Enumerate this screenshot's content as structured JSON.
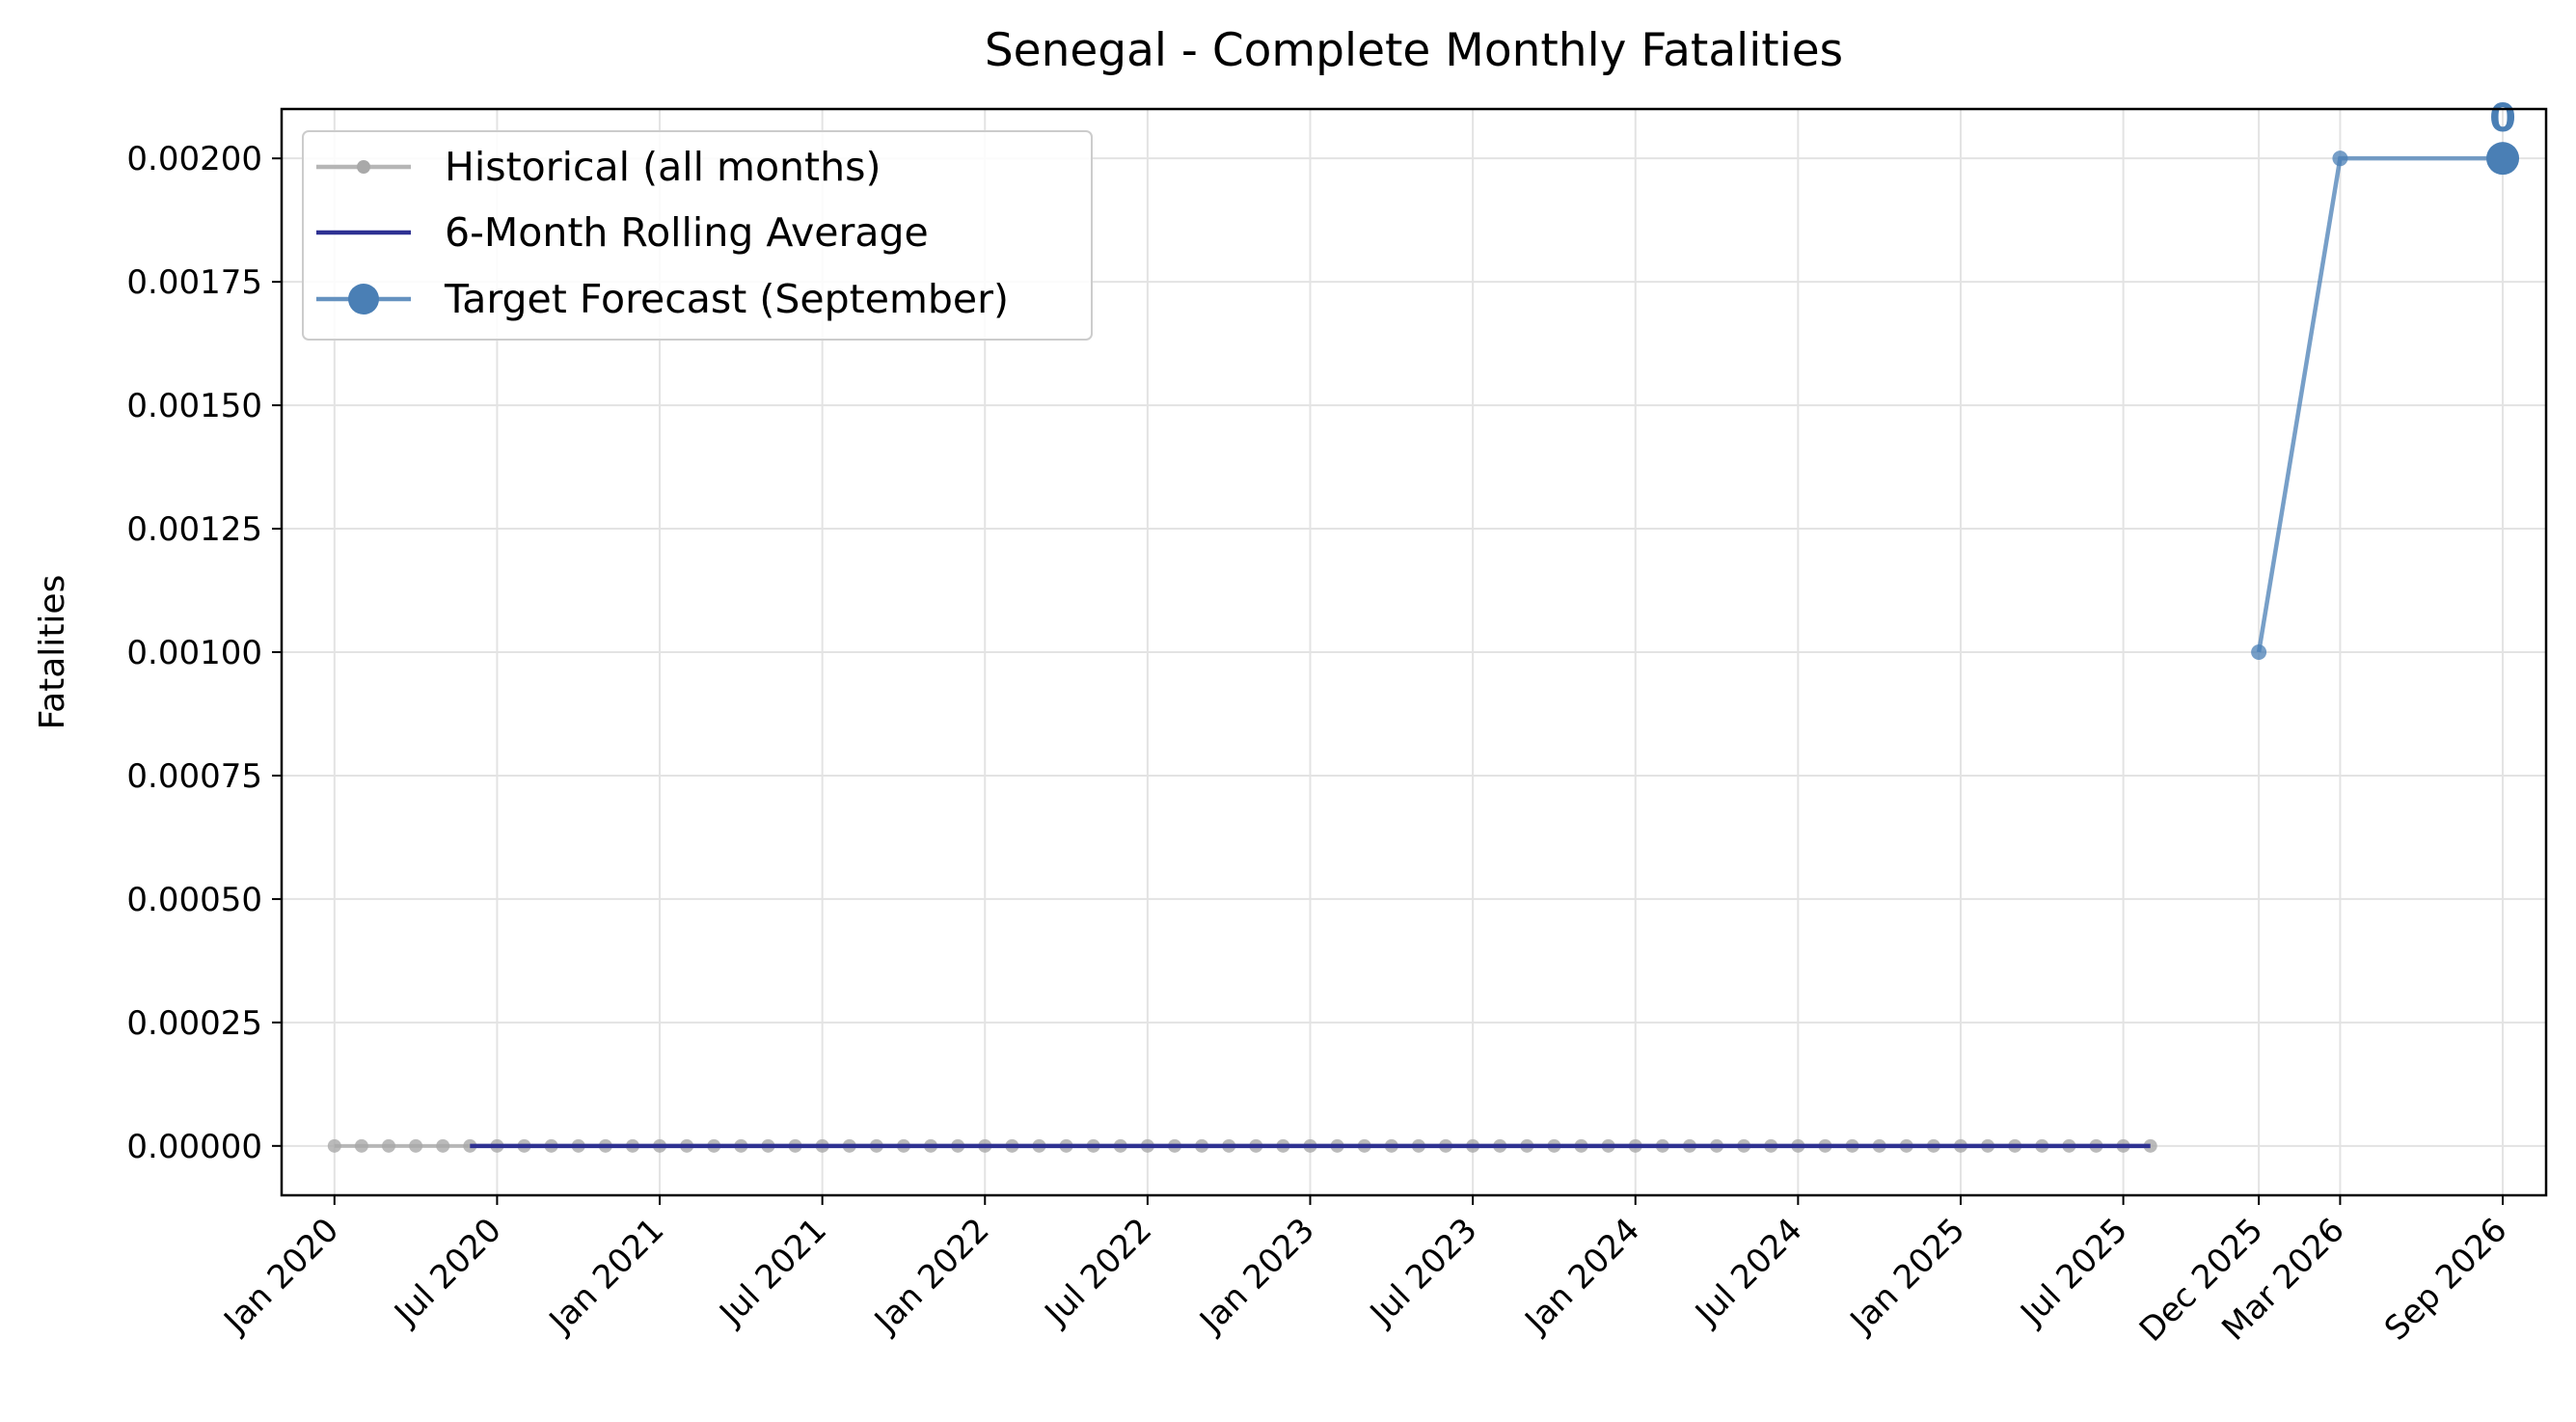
{
  "chart_data": {
    "type": "line",
    "title": "Senegal - Complete Monthly Fatalities",
    "xlabel": "",
    "ylabel": "Fatalities",
    "ylim": [
      -0.0001,
      0.0021
    ],
    "yticks": [
      "0.00000",
      "0.00025",
      "0.00050",
      "0.00075",
      "0.00100",
      "0.00125",
      "0.00150",
      "0.00175",
      "0.00200"
    ],
    "ytick_values": [
      0,
      0.00025,
      0.0005,
      0.00075,
      0.001,
      0.00125,
      0.0015,
      0.00175,
      0.002
    ],
    "xticks": [
      "Jan 2020",
      "Jul 2020",
      "Jan 2021",
      "Jul 2021",
      "Jan 2022",
      "Jul 2022",
      "Jan 2023",
      "Jul 2023",
      "Jan 2024",
      "Jul 2024",
      "Jan 2025",
      "Jul 2025",
      "Dec 2025",
      "Mar 2026",
      "Sep 2026"
    ],
    "xtick_dates": [
      "2020-01",
      "2020-07",
      "2021-01",
      "2021-07",
      "2022-01",
      "2022-07",
      "2023-01",
      "2023-07",
      "2024-01",
      "2024-07",
      "2025-01",
      "2025-07",
      "2025-12",
      "2026-03",
      "2026-09"
    ],
    "grid": true,
    "legend_position": "upper-left",
    "series": [
      {
        "name": "Historical (all months)",
        "color": "#a9a9a9",
        "marker": "small-dot",
        "x_start": "2020-01",
        "x_end": "2025-08",
        "value": 0
      },
      {
        "name": "6-Month Rolling Average",
        "color": "#2e3192",
        "marker": "none",
        "x_start": "2020-06",
        "x_end": "2025-08",
        "value": 0
      },
      {
        "name": "Target Forecast (September)",
        "color": "#4a7fb5",
        "marker": "dot",
        "x": [
          "2025-12",
          "2026-03",
          "2026-09"
        ],
        "values": [
          0.001,
          0.002,
          0.002
        ]
      }
    ],
    "annotations": [
      {
        "text": "0",
        "x": "2026-09",
        "y": 0.002
      }
    ]
  }
}
